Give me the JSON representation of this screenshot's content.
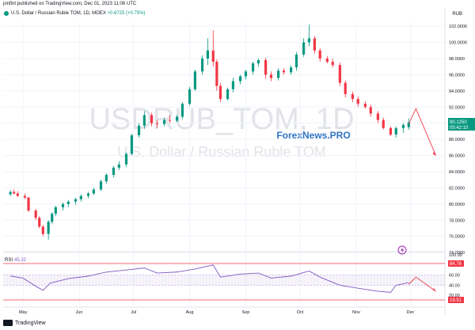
{
  "header": {
    "published_line": "jonfint published on TradingView.com, Dec 01, 2023 11:06 UTC",
    "symbol_line": "U.S. Dollar / Russian Ruble TOM, 1D, MOEX",
    "change_text": "+0.6725 (+0.75%)",
    "currency": "RUB"
  },
  "watermark": {
    "big": "USDRUB_TOM, 1D",
    "sub": "U.S. Dollar / Russian Ruble TOM",
    "brand": "ForexNews.PRO"
  },
  "rsi": {
    "label": "RSI",
    "value": "45.22",
    "upper_tag": "84.76",
    "lower_tag": "19.51"
  },
  "price_tag": {
    "price": "90.1250",
    "countdown": "05:42:10"
  },
  "footer": {
    "brand": "TradingView"
  },
  "colors": {
    "up": "#089981",
    "down": "#f23645",
    "rsi_line": "#7e57c2",
    "arrow": "#f23645"
  },
  "chart_data": [
    {
      "type": "candlestick",
      "title": "U.S. Dollar / Russian Ruble TOM, 1D, MOEX",
      "ylabel": "RUB",
      "ylim": [
        74.5,
        102.5
      ],
      "y_ticks": [
        "102.0000",
        "100.0000",
        "98.0000",
        "96.0000",
        "94.0000",
        "92.0000",
        "90.0000",
        "88.0000",
        "86.0000",
        "84.0000",
        "82.0000",
        "80.0000",
        "78.0000",
        "76.0000",
        "74.0000"
      ],
      "x_ticks": [
        "May",
        "Jun",
        "Jul",
        "Aug",
        "Sep",
        "Oct",
        "Nov",
        "Dec"
      ],
      "x_range": [
        "2023-04-20",
        "2023-12-20"
      ],
      "series": [
        {
          "values": [
            [
              "2023-04-24",
              81.2,
              81.7,
              81.0,
              81.5
            ],
            [
              "2023-04-26",
              81.5,
              81.8,
              81.2,
              81.3
            ],
            [
              "2023-04-28",
              81.3,
              81.6,
              80.9,
              81.0
            ],
            [
              "2023-05-02",
              81.0,
              81.3,
              80.6,
              80.8
            ],
            [
              "2023-05-04",
              80.8,
              80.9,
              79.0,
              79.2
            ],
            [
              "2023-05-08",
              79.2,
              79.4,
              78.0,
              78.3
            ],
            [
              "2023-05-10",
              78.3,
              78.5,
              77.0,
              77.2
            ],
            [
              "2023-05-12",
              77.2,
              77.4,
              76.0,
              76.3
            ],
            [
              "2023-05-15",
              76.3,
              78.0,
              75.6,
              77.8
            ],
            [
              "2023-05-17",
              77.8,
              79.0,
              77.5,
              78.8
            ],
            [
              "2023-05-19",
              78.8,
              79.8,
              78.5,
              79.6
            ],
            [
              "2023-05-23",
              79.6,
              80.2,
              79.2,
              80.0
            ],
            [
              "2023-05-26",
              80.0,
              80.5,
              79.6,
              80.3
            ],
            [
              "2023-05-30",
              80.3,
              80.8,
              79.9,
              80.6
            ],
            [
              "2023-06-02",
              80.6,
              81.2,
              80.3,
              81.0
            ],
            [
              "2023-06-06",
              81.0,
              81.5,
              80.7,
              81.3
            ],
            [
              "2023-06-09",
              81.3,
              82.0,
              81.1,
              81.8
            ],
            [
              "2023-06-13",
              81.8,
              83.0,
              81.6,
              82.8
            ],
            [
              "2023-06-16",
              82.8,
              83.8,
              82.5,
              83.6
            ],
            [
              "2023-06-20",
              83.6,
              84.7,
              83.3,
              84.5
            ],
            [
              "2023-06-23",
              84.5,
              85.3,
              84.2,
              84.9
            ],
            [
              "2023-06-27",
              84.9,
              86.4,
              84.6,
              86.2
            ],
            [
              "2023-06-30",
              86.2,
              88.7,
              86.0,
              88.5
            ],
            [
              "2023-07-04",
              88.5,
              90.0,
              88.2,
              89.7
            ],
            [
              "2023-07-07",
              89.7,
              91.5,
              89.3,
              91.0
            ],
            [
              "2023-07-11",
              91.0,
              91.3,
              89.6,
              90.0
            ],
            [
              "2023-07-14",
              90.0,
              90.4,
              89.4,
              89.9
            ],
            [
              "2023-07-18",
              89.9,
              90.7,
              89.6,
              90.4
            ],
            [
              "2023-07-21",
              90.4,
              91.0,
              90.0,
              90.3
            ],
            [
              "2023-07-25",
              90.3,
              91.0,
              90.1,
              90.8
            ],
            [
              "2023-07-28",
              90.8,
              92.6,
              90.5,
              92.4
            ],
            [
              "2023-08-01",
              92.4,
              94.5,
              92.2,
              94.2
            ],
            [
              "2023-08-04",
              94.2,
              96.6,
              94.0,
              96.4
            ],
            [
              "2023-08-08",
              96.4,
              98.4,
              96.0,
              98.0
            ],
            [
              "2023-08-11",
              98.0,
              100.5,
              97.2,
              99.0
            ],
            [
              "2023-08-14",
              99.0,
              101.5,
              97.0,
              97.6
            ],
            [
              "2023-08-16",
              97.6,
              97.9,
              94.0,
              94.6
            ],
            [
              "2023-08-18",
              94.6,
              95.0,
              92.6,
              93.0
            ],
            [
              "2023-08-22",
              93.0,
              94.4,
              92.8,
              94.2
            ],
            [
              "2023-08-25",
              94.2,
              95.6,
              93.8,
              95.2
            ],
            [
              "2023-08-29",
              95.2,
              96.0,
              94.8,
              95.8
            ],
            [
              "2023-09-01",
              95.8,
              96.6,
              95.4,
              96.4
            ],
            [
              "2023-09-05",
              96.4,
              97.6,
              96.0,
              97.4
            ],
            [
              "2023-09-08",
              97.4,
              98.0,
              97.0,
              97.8
            ],
            [
              "2023-09-12",
              97.8,
              98.1,
              95.5,
              96.0
            ],
            [
              "2023-09-15",
              96.0,
              96.4,
              95.2,
              95.6
            ],
            [
              "2023-09-19",
              95.6,
              96.8,
              95.3,
              96.5
            ],
            [
              "2023-09-22",
              96.5,
              96.8,
              96.0,
              96.3
            ],
            [
              "2023-09-26",
              96.3,
              97.2,
              96.0,
              96.9
            ],
            [
              "2023-09-29",
              96.9,
              98.8,
              96.5,
              98.5
            ],
            [
              "2023-10-03",
              98.5,
              100.5,
              98.2,
              100.0
            ],
            [
              "2023-10-06",
              100.0,
              102.2,
              99.5,
              100.5
            ],
            [
              "2023-10-09",
              100.5,
              100.8,
              98.6,
              99.0
            ],
            [
              "2023-10-12",
              99.0,
              99.3,
              97.6,
              98.0
            ],
            [
              "2023-10-16",
              98.0,
              98.3,
              97.4,
              97.6
            ],
            [
              "2023-10-19",
              97.6,
              98.0,
              96.9,
              97.2
            ],
            [
              "2023-10-23",
              97.2,
              97.5,
              94.6,
              95.0
            ],
            [
              "2023-10-26",
              95.0,
              95.3,
              93.2,
              93.6
            ],
            [
              "2023-10-30",
              93.6,
              93.9,
              92.6,
              93.0
            ],
            [
              "2023-11-02",
              93.0,
              93.3,
              92.0,
              92.4
            ],
            [
              "2023-11-06",
              92.4,
              92.7,
              91.8,
              92.0
            ],
            [
              "2023-11-09",
              92.0,
              92.3,
              90.8,
              91.2
            ],
            [
              "2023-11-13",
              91.2,
              91.5,
              90.0,
              90.4
            ],
            [
              "2023-11-16",
              90.4,
              90.7,
              89.2,
              89.4
            ],
            [
              "2023-11-20",
              89.4,
              89.6,
              88.4,
              88.6
            ],
            [
              "2023-11-23",
              88.6,
              89.6,
              88.2,
              89.4
            ],
            [
              "2023-11-27",
              89.4,
              90.0,
              88.8,
              89.8
            ],
            [
              "2023-11-30",
              89.5,
              90.6,
              89.2,
              90.1
            ]
          ]
        }
      ],
      "forecast_arrow": {
        "points": [
          [
            "2023-11-30",
            89.9
          ],
          [
            "2023-12-04",
            91.8
          ],
          [
            "2023-12-15",
            86.0
          ]
        ]
      }
    },
    {
      "type": "line",
      "title": "RSI",
      "ylim": [
        0,
        100
      ],
      "y_ticks": [
        "100.00",
        "80.00",
        "60.00",
        "40.00",
        "20.00"
      ],
      "levels": [
        60,
        40
      ],
      "series": [
        {
          "values": [
            [
              "2023-04-24",
              58
            ],
            [
              "2023-05-01",
              54
            ],
            [
              "2023-05-08",
              38
            ],
            [
              "2023-05-12",
              30
            ],
            [
              "2023-05-16",
              44
            ],
            [
              "2023-05-26",
              53
            ],
            [
              "2023-06-06",
              58
            ],
            [
              "2023-06-16",
              66
            ],
            [
              "2023-06-27",
              70
            ],
            [
              "2023-07-07",
              74
            ],
            [
              "2023-07-14",
              64
            ],
            [
              "2023-07-25",
              66
            ],
            [
              "2023-08-04",
              72
            ],
            [
              "2023-08-14",
              80
            ],
            [
              "2023-08-18",
              56
            ],
            [
              "2023-08-29",
              62
            ],
            [
              "2023-09-08",
              64
            ],
            [
              "2023-09-15",
              54
            ],
            [
              "2023-09-26",
              58
            ],
            [
              "2023-10-06",
              68
            ],
            [
              "2023-10-12",
              56
            ],
            [
              "2023-10-23",
              40
            ],
            [
              "2023-11-02",
              34
            ],
            [
              "2023-11-13",
              28
            ],
            [
              "2023-11-20",
              26
            ],
            [
              "2023-11-23",
              40
            ],
            [
              "2023-11-30",
              45
            ]
          ]
        }
      ],
      "forecast_arrow": {
        "points": [
          [
            "2023-11-30",
            42
          ],
          [
            "2023-12-04",
            56
          ],
          [
            "2023-12-15",
            28
          ]
        ]
      }
    }
  ]
}
